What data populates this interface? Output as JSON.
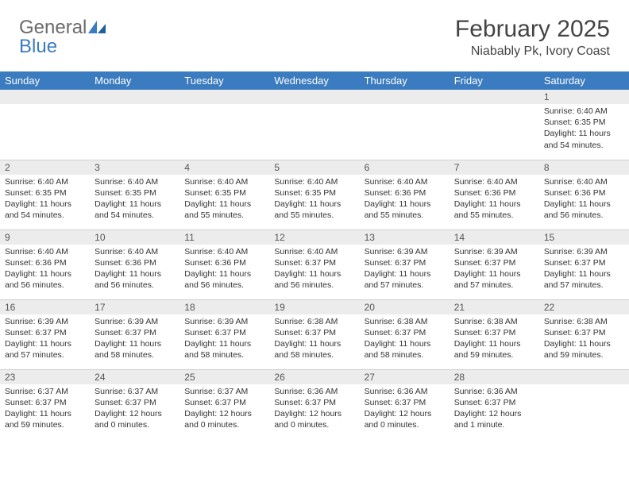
{
  "brand": {
    "text_gray": "General",
    "text_blue": "Blue"
  },
  "title": "February 2025",
  "location": "Niabably Pk, Ivory Coast",
  "colors": {
    "header_bg": "#3b7bbf",
    "header_fg": "#ffffff",
    "daynum_bg": "#ececec",
    "text": "#333333",
    "border": "#cfcfcf",
    "logo_gray": "#6a6a6a",
    "logo_blue": "#3b7bbf"
  },
  "day_headers": [
    "Sunday",
    "Monday",
    "Tuesday",
    "Wednesday",
    "Thursday",
    "Friday",
    "Saturday"
  ],
  "weeks": [
    [
      null,
      null,
      null,
      null,
      null,
      null,
      {
        "d": "1",
        "sr": "6:40 AM",
        "ss": "6:35 PM",
        "dl": "11 hours and 54 minutes."
      }
    ],
    [
      {
        "d": "2",
        "sr": "6:40 AM",
        "ss": "6:35 PM",
        "dl": "11 hours and 54 minutes."
      },
      {
        "d": "3",
        "sr": "6:40 AM",
        "ss": "6:35 PM",
        "dl": "11 hours and 54 minutes."
      },
      {
        "d": "4",
        "sr": "6:40 AM",
        "ss": "6:35 PM",
        "dl": "11 hours and 55 minutes."
      },
      {
        "d": "5",
        "sr": "6:40 AM",
        "ss": "6:35 PM",
        "dl": "11 hours and 55 minutes."
      },
      {
        "d": "6",
        "sr": "6:40 AM",
        "ss": "6:36 PM",
        "dl": "11 hours and 55 minutes."
      },
      {
        "d": "7",
        "sr": "6:40 AM",
        "ss": "6:36 PM",
        "dl": "11 hours and 55 minutes."
      },
      {
        "d": "8",
        "sr": "6:40 AM",
        "ss": "6:36 PM",
        "dl": "11 hours and 56 minutes."
      }
    ],
    [
      {
        "d": "9",
        "sr": "6:40 AM",
        "ss": "6:36 PM",
        "dl": "11 hours and 56 minutes."
      },
      {
        "d": "10",
        "sr": "6:40 AM",
        "ss": "6:36 PM",
        "dl": "11 hours and 56 minutes."
      },
      {
        "d": "11",
        "sr": "6:40 AM",
        "ss": "6:36 PM",
        "dl": "11 hours and 56 minutes."
      },
      {
        "d": "12",
        "sr": "6:40 AM",
        "ss": "6:37 PM",
        "dl": "11 hours and 56 minutes."
      },
      {
        "d": "13",
        "sr": "6:39 AM",
        "ss": "6:37 PM",
        "dl": "11 hours and 57 minutes."
      },
      {
        "d": "14",
        "sr": "6:39 AM",
        "ss": "6:37 PM",
        "dl": "11 hours and 57 minutes."
      },
      {
        "d": "15",
        "sr": "6:39 AM",
        "ss": "6:37 PM",
        "dl": "11 hours and 57 minutes."
      }
    ],
    [
      {
        "d": "16",
        "sr": "6:39 AM",
        "ss": "6:37 PM",
        "dl": "11 hours and 57 minutes."
      },
      {
        "d": "17",
        "sr": "6:39 AM",
        "ss": "6:37 PM",
        "dl": "11 hours and 58 minutes."
      },
      {
        "d": "18",
        "sr": "6:39 AM",
        "ss": "6:37 PM",
        "dl": "11 hours and 58 minutes."
      },
      {
        "d": "19",
        "sr": "6:38 AM",
        "ss": "6:37 PM",
        "dl": "11 hours and 58 minutes."
      },
      {
        "d": "20",
        "sr": "6:38 AM",
        "ss": "6:37 PM",
        "dl": "11 hours and 58 minutes."
      },
      {
        "d": "21",
        "sr": "6:38 AM",
        "ss": "6:37 PM",
        "dl": "11 hours and 59 minutes."
      },
      {
        "d": "22",
        "sr": "6:38 AM",
        "ss": "6:37 PM",
        "dl": "11 hours and 59 minutes."
      }
    ],
    [
      {
        "d": "23",
        "sr": "6:37 AM",
        "ss": "6:37 PM",
        "dl": "11 hours and 59 minutes."
      },
      {
        "d": "24",
        "sr": "6:37 AM",
        "ss": "6:37 PM",
        "dl": "12 hours and 0 minutes."
      },
      {
        "d": "25",
        "sr": "6:37 AM",
        "ss": "6:37 PM",
        "dl": "12 hours and 0 minutes."
      },
      {
        "d": "26",
        "sr": "6:36 AM",
        "ss": "6:37 PM",
        "dl": "12 hours and 0 minutes."
      },
      {
        "d": "27",
        "sr": "6:36 AM",
        "ss": "6:37 PM",
        "dl": "12 hours and 0 minutes."
      },
      {
        "d": "28",
        "sr": "6:36 AM",
        "ss": "6:37 PM",
        "dl": "12 hours and 1 minute."
      },
      null
    ]
  ],
  "labels": {
    "sunrise": "Sunrise:",
    "sunset": "Sunset:",
    "daylight": "Daylight:"
  }
}
